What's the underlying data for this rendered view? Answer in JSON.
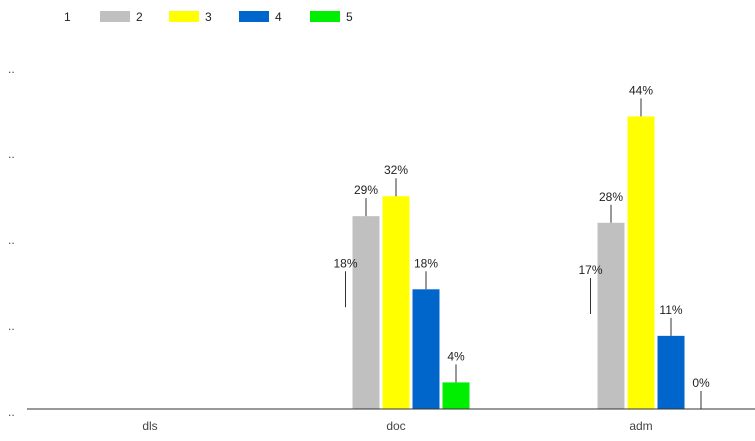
{
  "chart_data": {
    "type": "bar",
    "categories": [
      "dls",
      "doc",
      "adm"
    ],
    "series": [
      {
        "name": "1",
        "color": "#ffffff",
        "values": [
          null,
          18,
          17
        ],
        "labels": [
          "",
          "18%",
          "17%"
        ]
      },
      {
        "name": "2",
        "color": "#c0c0c0",
        "values": [
          null,
          29,
          28
        ],
        "labels": [
          "",
          "29%",
          "28%"
        ]
      },
      {
        "name": "3",
        "color": "#ffff00",
        "values": [
          null,
          32,
          44
        ],
        "labels": [
          "",
          "32%",
          "44%"
        ]
      },
      {
        "name": "4",
        "color": "#0066cc",
        "values": [
          null,
          18,
          11
        ],
        "labels": [
          "",
          "18%",
          "11%"
        ]
      },
      {
        "name": "5",
        "color": "#00ee00",
        "values": [
          null,
          4,
          0
        ],
        "labels": [
          "",
          "4%",
          "0%"
        ]
      }
    ],
    "yticks": [
      "..",
      "..",
      "..",
      "..",
      ".."
    ],
    "ylim": [
      0,
      50
    ],
    "legend_position": "top-left",
    "grid": false
  }
}
